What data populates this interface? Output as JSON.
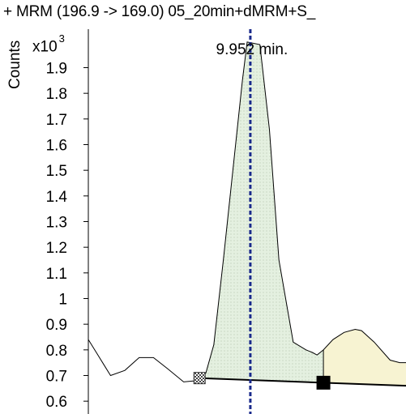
{
  "chart_data": {
    "type": "line",
    "title": "+ MRM (196.9 -> 169.0) 05_20min+dMRM+S_",
    "ylabel": "Counts",
    "y_scale_label": "x10",
    "y_scale_exponent": "3",
    "ylim": [
      0.55,
      2.05
    ],
    "yticks": [
      {
        "value": 0.6,
        "label": "0.6"
      },
      {
        "value": 0.7,
        "label": "0.7"
      },
      {
        "value": 0.8,
        "label": "0.8"
      },
      {
        "value": 0.9,
        "label": "0.9"
      },
      {
        "value": 1.0,
        "label": "1"
      },
      {
        "value": 1.1,
        "label": "1.1"
      },
      {
        "value": 1.2,
        "label": "1.2"
      },
      {
        "value": 1.3,
        "label": "1.3"
      },
      {
        "value": 1.4,
        "label": "1.4"
      },
      {
        "value": 1.5,
        "label": "1.5"
      },
      {
        "value": 1.6,
        "label": "1.6"
      },
      {
        "value": 1.7,
        "label": "1.7"
      },
      {
        "value": 1.8,
        "label": "1.8"
      },
      {
        "value": 1.9,
        "label": "1.9"
      }
    ],
    "xlim": [
      9.85,
      10.05
    ],
    "series": [
      {
        "x": [
          9.85,
          9.856,
          9.864,
          9.873,
          9.882,
          9.891,
          9.9,
          9.91,
          9.918,
          9.924,
          9.929,
          9.935,
          9.941,
          9.947,
          9.95,
          9.958,
          9.964,
          9.97,
          9.979,
          9.987,
          9.991,
          9.994,
          9.998,
          10.004,
          10.011,
          10.018,
          10.022,
          10.03,
          10.04,
          10.046,
          10.05
        ],
        "y": [
          0.84,
          0.78,
          0.7,
          0.72,
          0.77,
          0.77,
          0.726,
          0.675,
          0.68,
          0.71,
          0.82,
          1.15,
          1.5,
          1.85,
          2.0,
          1.99,
          1.66,
          1.15,
          0.83,
          0.8,
          0.79,
          0.78,
          0.8,
          0.84,
          0.868,
          0.88,
          0.875,
          0.83,
          0.76,
          0.75,
          0.75
        ]
      }
    ],
    "peak_annotation": {
      "x": 9.952,
      "label": "9.952 min."
    },
    "integration_region": {
      "start_x": 9.92,
      "end_x": 9.998,
      "fill": "#e4f0e0"
    },
    "next_region": {
      "start_x": 9.998,
      "end_x": 10.05,
      "fill": "#f7f3d2"
    },
    "baseline": {
      "start": {
        "x": 9.92,
        "y": 0.69
      },
      "end": {
        "x": 10.05,
        "y": 0.66
      }
    },
    "colors": {
      "line": "#000000",
      "marker_line": "#1a2a8c",
      "grid": "none"
    },
    "grid": false
  }
}
